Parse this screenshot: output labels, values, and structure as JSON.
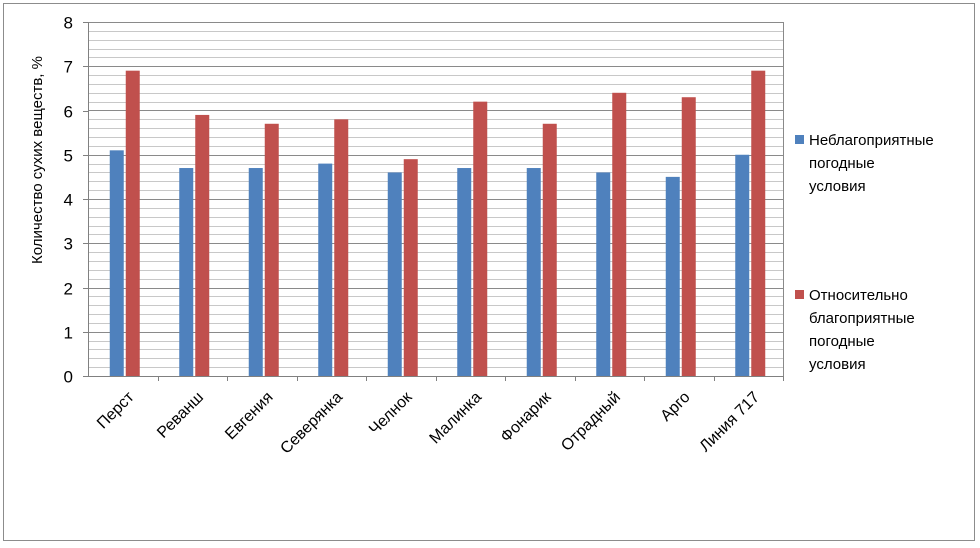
{
  "chart_data": {
    "type": "bar",
    "title": "",
    "xlabel": "",
    "ylabel": "Количество сухих веществ, %",
    "ylim": [
      0,
      8
    ],
    "yticks": [
      0,
      1,
      2,
      3,
      4,
      5,
      6,
      7,
      8
    ],
    "grid": true,
    "legend_position": "right",
    "categories": [
      "Перст",
      "Реванш",
      "Евгения",
      "Северянка",
      "Челнок",
      "Малинка",
      "Фонарик",
      "Отрадный",
      "Арго",
      "Линия 717"
    ],
    "series": [
      {
        "name": "Неблагоприятные погодные условия",
        "legend_lines": [
          "Неблагоприятные",
          "погодные",
          "условия"
        ],
        "color": "#4f81bd",
        "values": [
          5.1,
          4.7,
          4.7,
          4.8,
          4.6,
          4.7,
          4.7,
          4.6,
          4.5,
          5.0
        ]
      },
      {
        "name": "Относительно благоприятные погодные условия",
        "legend_lines": [
          "Относительно",
          "благоприятные",
          "погодные",
          "условия"
        ],
        "color": "#c0504d",
        "values": [
          6.9,
          5.9,
          5.7,
          5.8,
          4.9,
          6.2,
          5.7,
          6.4,
          6.3,
          6.9
        ]
      }
    ]
  }
}
